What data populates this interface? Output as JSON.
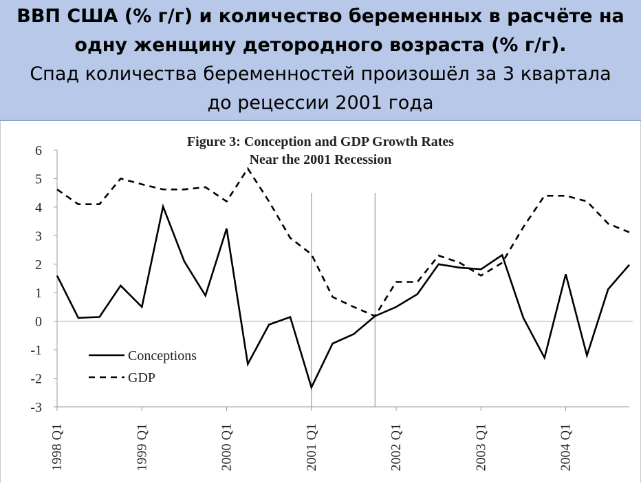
{
  "header": {
    "title_line1": "ВВП США (% г/г) и количество беременных в расчёте на",
    "title_line2": "одну женщину детородного возраста (% г/г).",
    "subtitle_line1": "Спад количества беременностей произошёл за 3 квартала",
    "subtitle_line2": "до рецессии 2001 года"
  },
  "chart_data": {
    "type": "line",
    "title": "Figure 3: Conception and GDP Growth Rates",
    "subtitle": "Near the 2001 Recession",
    "xlabel": "",
    "ylabel": "",
    "ylim": [
      -3,
      6
    ],
    "yticks": [
      "6",
      "5",
      "4",
      "3",
      "2",
      "1",
      "0",
      "-1",
      "-2",
      "-3"
    ],
    "x_tick_labels": [
      "1998 Q1",
      "1999 Q1",
      "2000 Q1",
      "2001 Q1",
      "2002 Q1",
      "2003 Q1",
      "2004 Q1"
    ],
    "categories": [
      "1998 Q1",
      "1998 Q2",
      "1998 Q3",
      "1998 Q4",
      "1999 Q1",
      "1999 Q2",
      "1999 Q3",
      "1999 Q4",
      "2000 Q1",
      "2000 Q2",
      "2000 Q3",
      "2000 Q4",
      "2001 Q1",
      "2001 Q2",
      "2001 Q3",
      "2001 Q4",
      "2002 Q1",
      "2002 Q2",
      "2002 Q3",
      "2002 Q4",
      "2003 Q1",
      "2003 Q2",
      "2003 Q3",
      "2003 Q4",
      "2004 Q1",
      "2004 Q2",
      "2004 Q3",
      "2004 Q4"
    ],
    "recession_markers": [
      "2001 Q1",
      "2001 Q4"
    ],
    "legend_position": "bottom-left",
    "grid": false,
    "series": [
      {
        "name": "Conceptions",
        "style": "solid",
        "color": "#000000",
        "values": [
          1.6,
          0.12,
          0.15,
          1.25,
          0.5,
          4.02,
          2.1,
          0.9,
          3.25,
          -1.5,
          -0.12,
          0.15,
          -2.32,
          -0.78,
          -0.45,
          0.18,
          0.5,
          0.95,
          2.0,
          1.88,
          1.82,
          2.32,
          0.12,
          -1.28,
          1.65,
          -1.2,
          1.12,
          1.98
        ]
      },
      {
        "name": "GDP",
        "style": "dashed",
        "color": "#000000",
        "values": [
          4.62,
          4.1,
          4.1,
          5.0,
          4.8,
          4.62,
          4.62,
          4.7,
          4.2,
          5.35,
          4.2,
          2.92,
          2.35,
          0.85,
          0.5,
          0.18,
          1.38,
          1.38,
          2.3,
          2.05,
          1.6,
          2.05,
          3.3,
          4.4,
          4.4,
          4.2,
          3.42,
          3.12
        ]
      }
    ]
  }
}
